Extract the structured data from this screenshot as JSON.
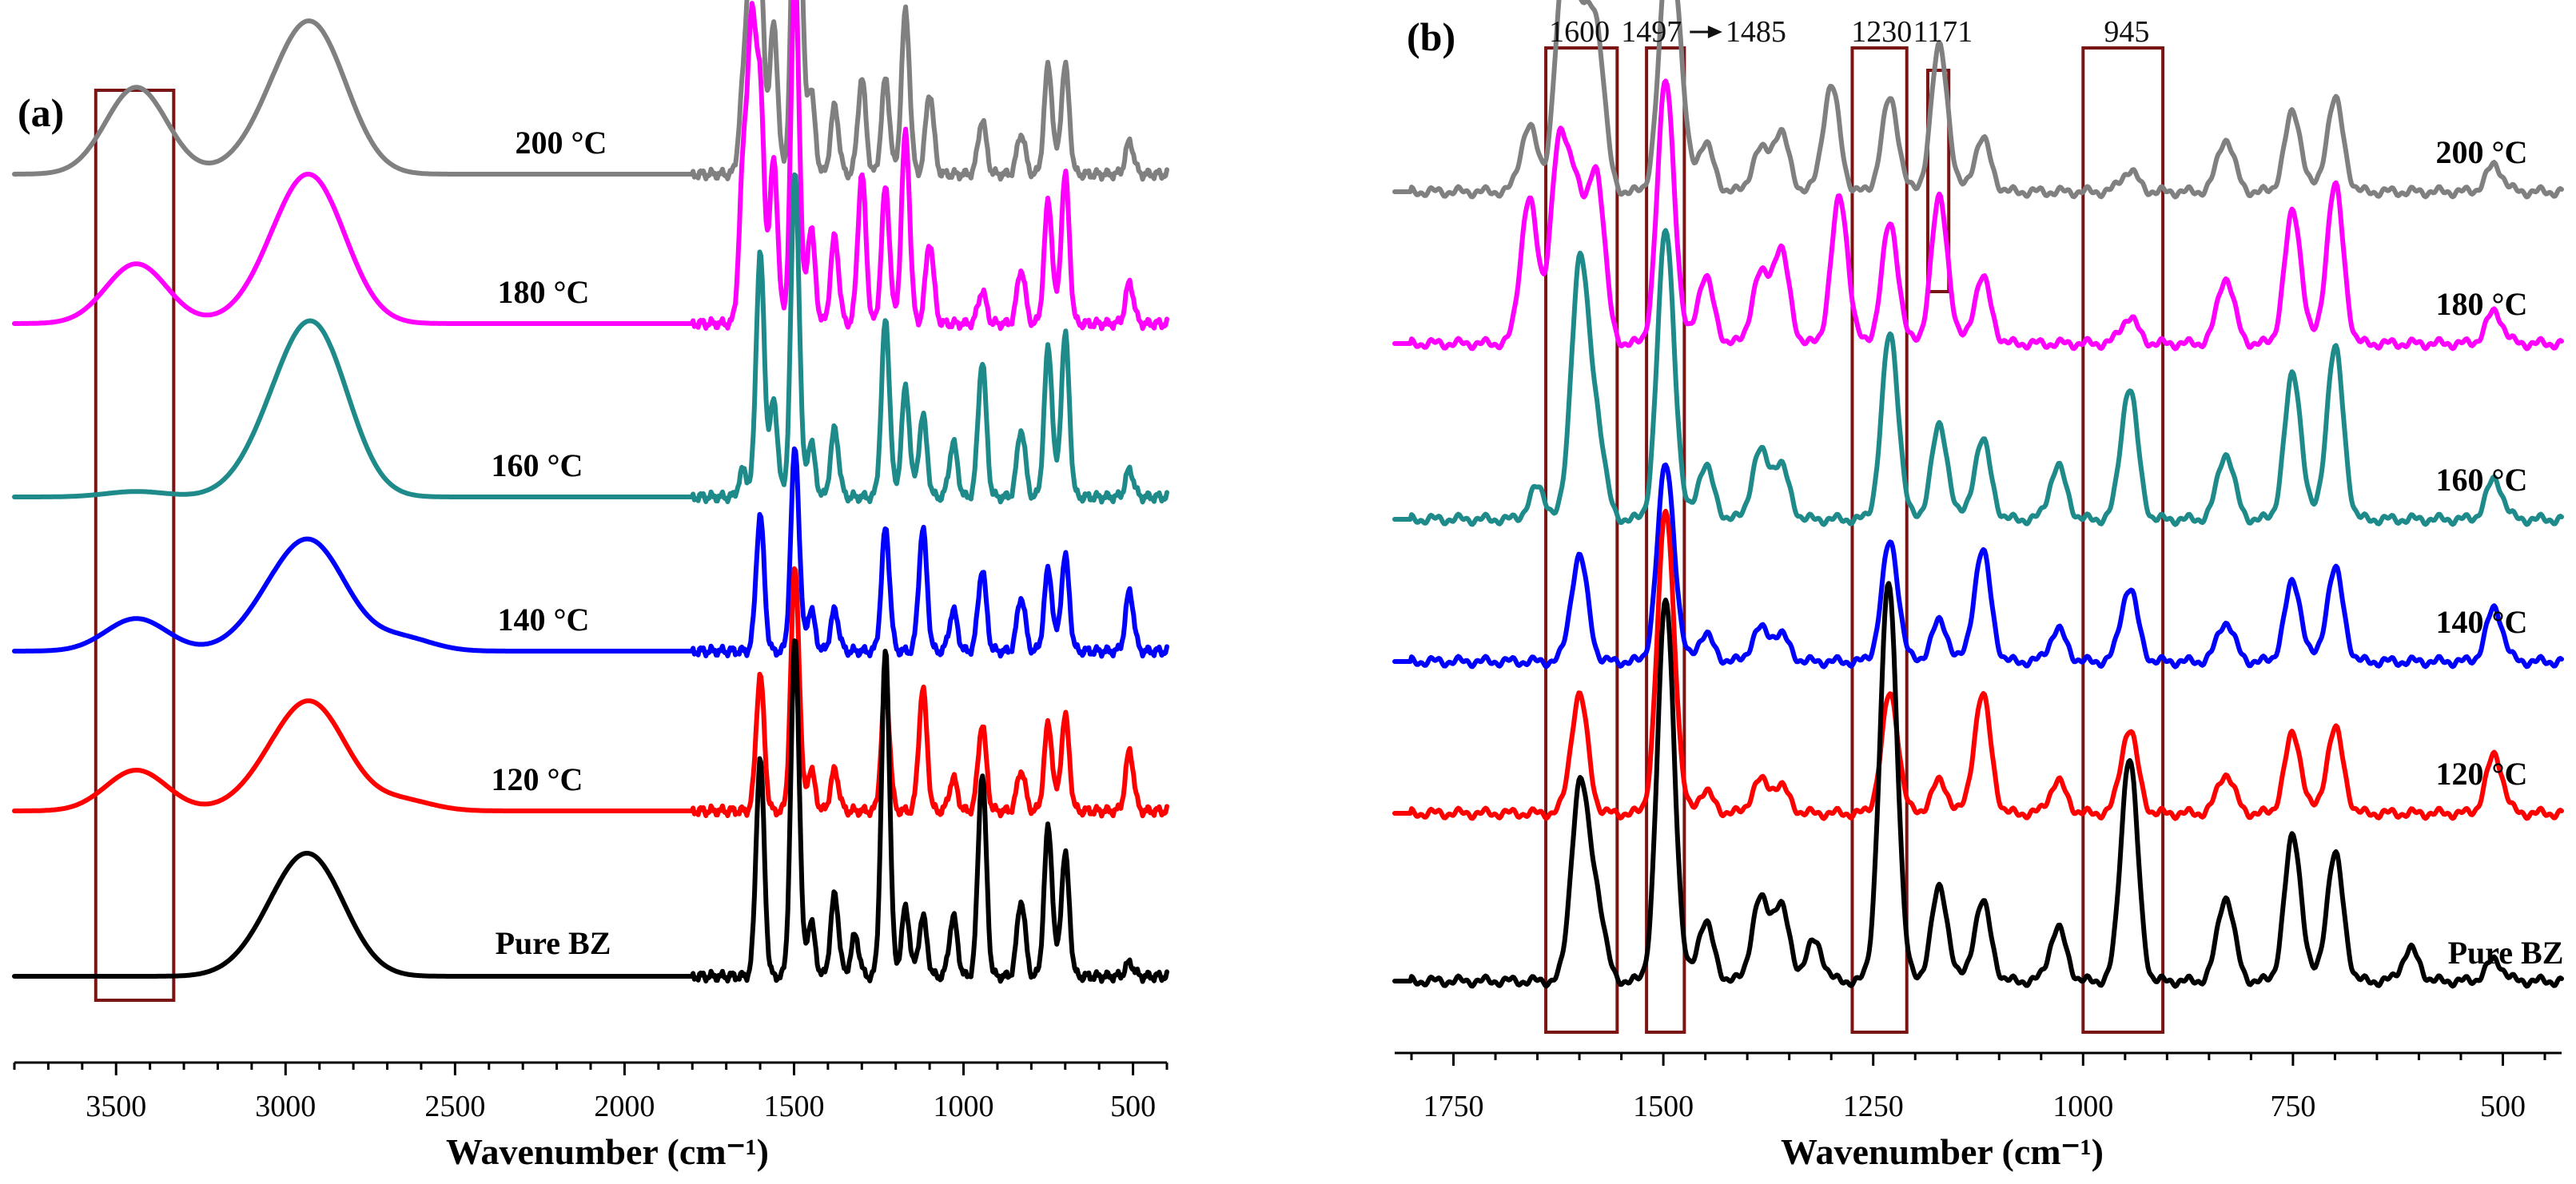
{
  "figure": {
    "panel_a_letter": "(a)",
    "panel_b_letter": "(b)"
  },
  "chart_data": [
    {
      "type": "line",
      "panel": "(a)",
      "xlabel": "Wavenumber (cm⁻¹)",
      "ylabel": "",
      "xlim": [
        3800,
        400
      ],
      "x_inverted": true,
      "x_ticks": [
        3500,
        3000,
        2500,
        2000,
        1500,
        1000,
        500
      ],
      "y_ticks_shown": false,
      "highlight_regions": [
        {
          "from": 3560,
          "to": 3330
        }
      ],
      "series": [
        {
          "name": "200 °C",
          "color": "#808080",
          "offset": 5,
          "peaks": [
            [
              3440,
              0.32
            ],
            [
              3060,
              0.1
            ],
            [
              2960,
              0.28
            ],
            [
              2900,
              0.17
            ],
            [
              2860,
              0.14
            ],
            [
              1650,
              0.3
            ],
            [
              1625,
              0.92
            ],
            [
              1600,
              0.72
            ],
            [
              1560,
              0.55
            ],
            [
              1497,
              0.95
            ],
            [
              1485,
              0.7
            ],
            [
              1450,
              0.3
            ],
            [
              1380,
              0.25
            ],
            [
              1300,
              0.35
            ],
            [
              1230,
              0.35
            ],
            [
              1171,
              0.6
            ],
            [
              1100,
              0.3
            ],
            [
              945,
              0.2
            ],
            [
              830,
              0.15
            ],
            [
              750,
              0.4
            ],
            [
              700,
              0.4
            ],
            [
              510,
              0.12
            ]
          ]
        },
        {
          "name": "180 °C",
          "color": "#ff00ff",
          "offset": 4,
          "peaks": [
            [
              3440,
              0.22
            ],
            [
              3060,
              0.08
            ],
            [
              2960,
              0.3
            ],
            [
              2900,
              0.15
            ],
            [
              2860,
              0.13
            ],
            [
              1650,
              0.55
            ],
            [
              1625,
              1.0
            ],
            [
              1600,
              0.82
            ],
            [
              1560,
              0.6
            ],
            [
              1497,
              1.3
            ],
            [
              1450,
              0.35
            ],
            [
              1380,
              0.32
            ],
            [
              1300,
              0.55
            ],
            [
              1230,
              0.5
            ],
            [
              1171,
              0.7
            ],
            [
              1100,
              0.3
            ],
            [
              945,
              0.12
            ],
            [
              830,
              0.2
            ],
            [
              750,
              0.45
            ],
            [
              700,
              0.55
            ],
            [
              510,
              0.15
            ]
          ]
        },
        {
          "name": "160 °C",
          "color": "#1e8a8a",
          "offset": 3,
          "peaks": [
            [
              3440,
              0.02
            ],
            [
              3060,
              0.12
            ],
            [
              2960,
              0.3
            ],
            [
              2900,
              0.2
            ],
            [
              2860,
              0.18
            ],
            [
              1650,
              0.1
            ],
            [
              1600,
              0.9
            ],
            [
              1560,
              0.35
            ],
            [
              1497,
              1.2
            ],
            [
              1450,
              0.2
            ],
            [
              1380,
              0.25
            ],
            [
              1230,
              0.65
            ],
            [
              1171,
              0.4
            ],
            [
              1120,
              0.3
            ],
            [
              1030,
              0.2
            ],
            [
              945,
              0.5
            ],
            [
              830,
              0.25
            ],
            [
              750,
              0.55
            ],
            [
              700,
              0.6
            ],
            [
              510,
              0.1
            ]
          ]
        },
        {
          "name": "140 °C",
          "color": "#0000ff",
          "offset": 2,
          "peaks": [
            [
              3440,
              0.12
            ],
            [
              3060,
              0.1
            ],
            [
              2960,
              0.2
            ],
            [
              2900,
              0.12
            ],
            [
              2860,
              0.1
            ],
            [
              2660,
              0.05
            ],
            [
              1600,
              0.5
            ],
            [
              1497,
              0.75
            ],
            [
              1450,
              0.15
            ],
            [
              1380,
              0.15
            ],
            [
              1230,
              0.45
            ],
            [
              1120,
              0.45
            ],
            [
              1030,
              0.15
            ],
            [
              945,
              0.3
            ],
            [
              830,
              0.2
            ],
            [
              750,
              0.3
            ],
            [
              700,
              0.35
            ],
            [
              510,
              0.22
            ]
          ]
        },
        {
          "name": "120 °C",
          "color": "#ff0000",
          "offset": 1,
          "peaks": [
            [
              3440,
              0.15
            ],
            [
              3060,
              0.08
            ],
            [
              2960,
              0.2
            ],
            [
              2900,
              0.12
            ],
            [
              2860,
              0.1
            ],
            [
              2660,
              0.04
            ],
            [
              1600,
              0.5
            ],
            [
              1497,
              0.9
            ],
            [
              1450,
              0.15
            ],
            [
              1380,
              0.15
            ],
            [
              1230,
              0.45
            ],
            [
              1120,
              0.45
            ],
            [
              1030,
              0.12
            ],
            [
              945,
              0.32
            ],
            [
              830,
              0.15
            ],
            [
              750,
              0.32
            ],
            [
              700,
              0.35
            ],
            [
              510,
              0.22
            ]
          ]
        },
        {
          "name": "Pure BZ",
          "color": "#000000",
          "offset": 0,
          "peaks": [
            [
              3060,
              0.08
            ],
            [
              2960,
              0.25
            ],
            [
              2900,
              0.12
            ],
            [
              2860,
              0.1
            ],
            [
              1600,
              0.8
            ],
            [
              1497,
              1.25
            ],
            [
              1450,
              0.2
            ],
            [
              1380,
              0.3
            ],
            [
              1320,
              0.15
            ],
            [
              1230,
              1.2
            ],
            [
              1171,
              0.25
            ],
            [
              1120,
              0.22
            ],
            [
              1030,
              0.22
            ],
            [
              945,
              0.75
            ],
            [
              830,
              0.28
            ],
            [
              750,
              0.55
            ],
            [
              700,
              0.45
            ],
            [
              510,
              0.05
            ]
          ]
        }
      ]
    },
    {
      "type": "line",
      "panel": "(b)",
      "xlabel": "Wavenumber (cm⁻¹)",
      "ylabel": "",
      "xlim": [
        1820,
        430
      ],
      "x_inverted": true,
      "x_ticks": [
        1750,
        1500,
        1250,
        1000,
        750,
        500
      ],
      "y_ticks_shown": false,
      "annotations": [
        "1600",
        "1497",
        "1485",
        "1230",
        "1171",
        "945"
      ],
      "highlight_regions": [
        {
          "from": 1640,
          "to": 1555
        },
        {
          "from": 1520,
          "to": 1475
        },
        {
          "from": 1275,
          "to": 1210
        },
        {
          "from": 1185,
          "to": 1160
        },
        {
          "from": 1000,
          "to": 905
        }
      ],
      "series": [
        {
          "name": "200 °C",
          "color": "#808080",
          "offset": 5,
          "peaks": [
            [
              1660,
              0.25
            ],
            [
              1620,
              0.75
            ],
            [
              1600,
              0.55
            ],
            [
              1580,
              0.6
            ],
            [
              1497,
              0.65
            ],
            [
              1485,
              0.5
            ],
            [
              1450,
              0.18
            ],
            [
              1385,
              0.15
            ],
            [
              1360,
              0.22
            ],
            [
              1300,
              0.4
            ],
            [
              1230,
              0.35
            ],
            [
              1171,
              0.55
            ],
            [
              1120,
              0.2
            ],
            [
              945,
              0.08
            ],
            [
              830,
              0.2
            ],
            [
              750,
              0.3
            ],
            [
              700,
              0.35
            ],
            [
              510,
              0.1
            ]
          ]
        },
        {
          "name": "180 °C",
          "color": "#ff00ff",
          "offset": 4,
          "peaks": [
            [
              1660,
              0.55
            ],
            [
              1625,
              0.7
            ],
            [
              1605,
              0.55
            ],
            [
              1580,
              0.65
            ],
            [
              1497,
              1.0
            ],
            [
              1450,
              0.25
            ],
            [
              1385,
              0.25
            ],
            [
              1360,
              0.35
            ],
            [
              1290,
              0.55
            ],
            [
              1230,
              0.45
            ],
            [
              1171,
              0.55
            ],
            [
              1120,
              0.25
            ],
            [
              945,
              0.1
            ],
            [
              830,
              0.25
            ],
            [
              750,
              0.5
            ],
            [
              700,
              0.6
            ],
            [
              510,
              0.12
            ]
          ]
        },
        {
          "name": "160 °C",
          "color": "#1e8a8a",
          "offset": 3,
          "peaks": [
            [
              1650,
              0.12
            ],
            [
              1600,
              0.95
            ],
            [
              1580,
              0.35
            ],
            [
              1497,
              1.1
            ],
            [
              1450,
              0.2
            ],
            [
              1385,
              0.25
            ],
            [
              1360,
              0.2
            ],
            [
              1230,
              0.7
            ],
            [
              1171,
              0.35
            ],
            [
              1120,
              0.3
            ],
            [
              1030,
              0.2
            ],
            [
              945,
              0.5
            ],
            [
              830,
              0.25
            ],
            [
              750,
              0.55
            ],
            [
              700,
              0.65
            ],
            [
              510,
              0.15
            ]
          ]
        },
        {
          "name": "140 °C",
          "color": "#0000ff",
          "offset": 2,
          "peaks": [
            [
              1600,
              0.4
            ],
            [
              1497,
              0.75
            ],
            [
              1450,
              0.1
            ],
            [
              1385,
              0.12
            ],
            [
              1360,
              0.1
            ],
            [
              1230,
              0.45
            ],
            [
              1171,
              0.15
            ],
            [
              1120,
              0.42
            ],
            [
              1030,
              0.12
            ],
            [
              945,
              0.28
            ],
            [
              830,
              0.15
            ],
            [
              750,
              0.3
            ],
            [
              700,
              0.35
            ],
            [
              510,
              0.2
            ]
          ]
        },
        {
          "name": "120 °C",
          "color": "#ff0000",
          "offset": 1,
          "peaks": [
            [
              1600,
              0.45
            ],
            [
              1497,
              1.15
            ],
            [
              1450,
              0.08
            ],
            [
              1385,
              0.12
            ],
            [
              1360,
              0.1
            ],
            [
              1230,
              0.45
            ],
            [
              1171,
              0.12
            ],
            [
              1120,
              0.45
            ],
            [
              1030,
              0.12
            ],
            [
              945,
              0.32
            ],
            [
              830,
              0.15
            ],
            [
              750,
              0.3
            ],
            [
              700,
              0.32
            ],
            [
              510,
              0.22
            ]
          ]
        },
        {
          "name": "Pure BZ",
          "color": "#000000",
          "offset": 0,
          "peaks": [
            [
              1600,
              0.72
            ],
            [
              1580,
              0.3
            ],
            [
              1497,
              1.45
            ],
            [
              1450,
              0.22
            ],
            [
              1385,
              0.3
            ],
            [
              1360,
              0.28
            ],
            [
              1320,
              0.15
            ],
            [
              1235,
              0.55
            ],
            [
              1230,
              1.0
            ],
            [
              1171,
              0.35
            ],
            [
              1120,
              0.3
            ],
            [
              1030,
              0.2
            ],
            [
              945,
              0.85
            ],
            [
              830,
              0.32
            ],
            [
              750,
              0.55
            ],
            [
              700,
              0.48
            ],
            [
              610,
              0.12
            ],
            [
              510,
              0.08
            ]
          ]
        }
      ]
    }
  ]
}
